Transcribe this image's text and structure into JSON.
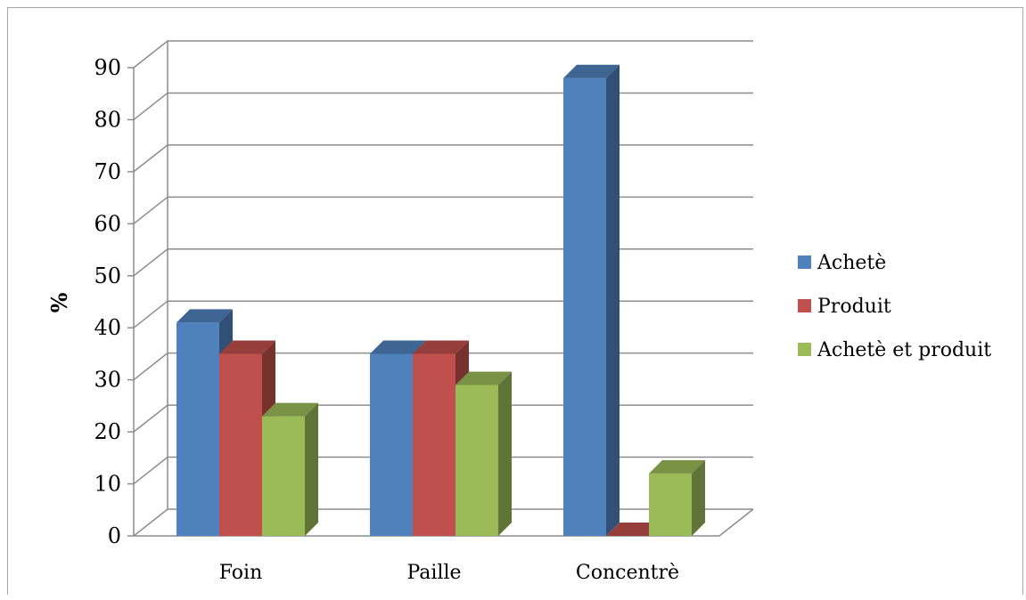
{
  "chart_data": {
    "type": "bar",
    "categories": [
      "Foin",
      "Paille",
      "Concentrè"
    ],
    "series": [
      {
        "name": "Achetè",
        "values": [
          41,
          35,
          88
        ],
        "color": "#4f81bd"
      },
      {
        "name": "Produit",
        "values": [
          35,
          35,
          0
        ],
        "color": "#c0504d"
      },
      {
        "name": "Achetè et produit",
        "values": [
          23,
          29,
          12
        ],
        "color": "#9bbb59"
      }
    ],
    "ylabel": "%",
    "ylim": [
      0,
      90
    ],
    "yticks": [
      "0",
      "10",
      "20",
      "30",
      "40",
      "50",
      "60",
      "70",
      "80",
      "90"
    ],
    "grid": true,
    "legend_position": "right",
    "style": "3d-clustered-column"
  }
}
